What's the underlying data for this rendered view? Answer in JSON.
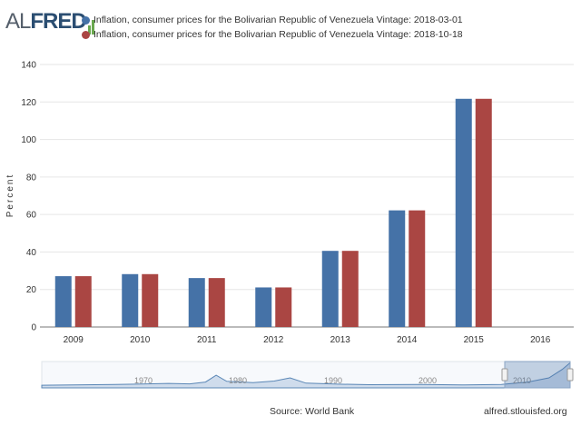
{
  "logo": {
    "part1": "AL",
    "part2": "FRED"
  },
  "footer": {
    "source": "Source: World Bank",
    "site": "alfred.stlouisfed.org"
  },
  "colors": {
    "series1": "#4572a7",
    "series2": "#aa4643"
  },
  "chart_data": {
    "type": "bar",
    "categories": [
      "2009",
      "2010",
      "2011",
      "2012",
      "2013",
      "2014",
      "2015",
      "2016"
    ],
    "series": [
      {
        "name": "Inflation, consumer prices for the Bolivarian Republic of Venezuela Vintage: 2018-03-01",
        "values": [
          27.1,
          28.2,
          26.1,
          21.1,
          40.6,
          62.2,
          121.7,
          null
        ]
      },
      {
        "name": "Inflation, consumer prices for the Bolivarian Republic of Venezuela Vintage: 2018-10-18",
        "values": [
          27.1,
          28.2,
          26.1,
          21.1,
          40.6,
          62.2,
          121.7,
          null
        ]
      }
    ],
    "ylabel": "Percent",
    "ylim": [
      0,
      140
    ],
    "yticks": [
      0,
      20,
      40,
      60,
      80,
      100,
      120,
      140
    ],
    "grid": true,
    "legend": "top"
  },
  "navigator": {
    "labels": [
      "1970",
      "1980",
      "1990",
      "2000",
      "2010"
    ]
  }
}
